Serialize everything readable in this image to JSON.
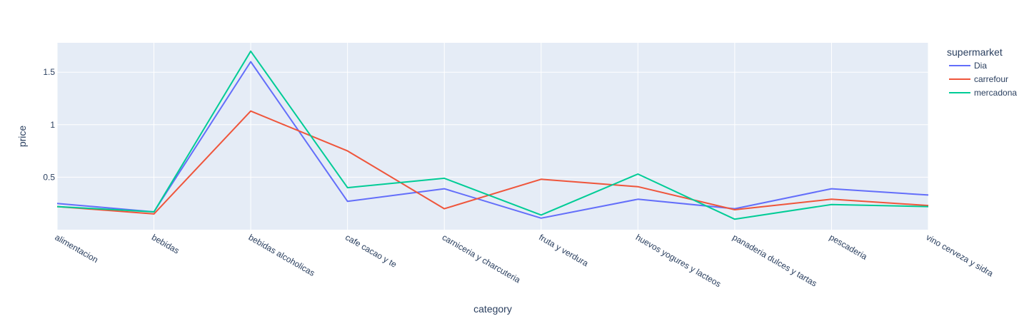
{
  "chart_data": {
    "type": "line",
    "xlabel": "category",
    "ylabel": "price",
    "legend_title": "supermarket",
    "legend_position": "top-right",
    "grid": true,
    "background": "#e5ecf6",
    "ylim": [
      0,
      1.78
    ],
    "yticks": [
      0.5,
      1,
      1.5
    ],
    "ytick_labels": [
      "0.5",
      "1",
      "1.5"
    ],
    "categories": [
      "alimentacion",
      "bebidas",
      "bebidas alcoholicas",
      "cafe cacao y te",
      "carniceria y charcuteria",
      "fruta y verdura",
      "huevos yogures y lacteos",
      "panaderia dulces y tartas",
      "pescaderia",
      "vino cerveza y sidra"
    ],
    "series": [
      {
        "name": "Dia",
        "color": "#636efa",
        "values": [
          0.25,
          0.17,
          1.6,
          0.27,
          0.39,
          0.11,
          0.29,
          0.2,
          0.39,
          0.33
        ]
      },
      {
        "name": "carrefour",
        "color": "#ef553b",
        "values": [
          0.22,
          0.15,
          1.13,
          0.75,
          0.2,
          0.48,
          0.41,
          0.19,
          0.29,
          0.23
        ]
      },
      {
        "name": "mercadona",
        "color": "#00cc96",
        "values": [
          0.22,
          0.17,
          1.7,
          0.4,
          0.49,
          0.14,
          0.53,
          0.1,
          0.24,
          0.22
        ]
      }
    ]
  }
}
